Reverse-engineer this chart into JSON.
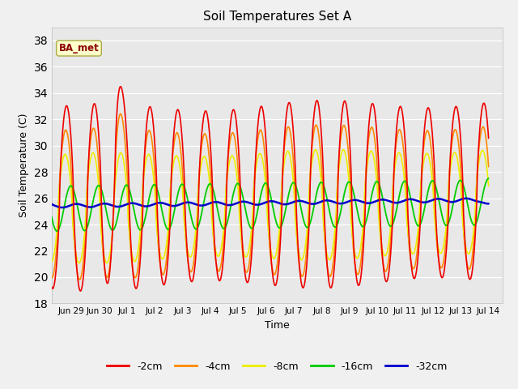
{
  "title": "Soil Temperatures Set A",
  "xlabel": "Time",
  "ylabel": "Soil Temperature (C)",
  "ylim": [
    18,
    39
  ],
  "yticks": [
    18,
    20,
    22,
    24,
    26,
    28,
    30,
    32,
    34,
    36,
    38
  ],
  "fig_bg": "#f0f0f0",
  "plot_bg": "#e8e8e8",
  "grid_color": "#ffffff",
  "annotation_text": "BA_met",
  "annotation_bg": "#ffffcc",
  "annotation_border": "#aaaa44",
  "line_colors": {
    "-2cm": "#ee0000",
    "-4cm": "#ff8800",
    "-8cm": "#eeee00",
    "-16cm": "#00cc00",
    "-32cm": "#0000cc"
  },
  "tick_positions": [
    1,
    2,
    3,
    4,
    5,
    6,
    7,
    8,
    9,
    10,
    11,
    12,
    13,
    14,
    15,
    16
  ],
  "tick_labels": [
    "Jun 29",
    "Jun 30",
    "Jul 1",
    "Jul 2",
    "Jul 3",
    "Jul 4",
    "Jul 5",
    "Jul 6",
    "Jul 7",
    "Jul 8",
    "Jul 9",
    "Jul 10",
    "Jul 11",
    "Jul 12",
    "Jul 13",
    "Jul 14"
  ],
  "xlim": [
    0.5,
    16.5
  ],
  "n_points": 1600,
  "n_days": 16
}
